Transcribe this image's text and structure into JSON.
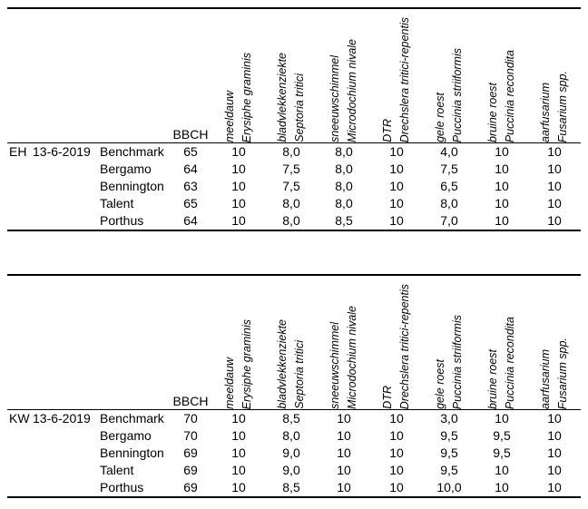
{
  "columns": {
    "bbch_label": "BBCH",
    "diseases": [
      {
        "dutch": "meeldauw",
        "latin": "Erysiphe graminis"
      },
      {
        "dutch": "bladvlekkenziekte",
        "latin": "Septoria tritici"
      },
      {
        "dutch": "sneeuwschimmel",
        "latin": "Microdochium nivale"
      },
      {
        "dutch": "DTR",
        "latin": "Drechslera tritici-repentis"
      },
      {
        "dutch": "gele roest",
        "latin": "Puccinia striiformis"
      },
      {
        "dutch": "bruine roest",
        "latin": "Puccinia recondita"
      },
      {
        "dutch": "aarfusarium",
        "latin": "Fusarium  spp."
      }
    ]
  },
  "tables": [
    {
      "group": "EH",
      "date": "13-6-2019",
      "rows": [
        {
          "variety": "Benchmark",
          "bbch": "65",
          "values": [
            "10",
            "8,0",
            "8,0",
            "10",
            "4,0",
            "10",
            "10"
          ]
        },
        {
          "variety": "Bergamo",
          "bbch": "64",
          "values": [
            "10",
            "7,5",
            "8,0",
            "10",
            "7,5",
            "10",
            "10"
          ]
        },
        {
          "variety": "Bennington",
          "bbch": "63",
          "values": [
            "10",
            "7,5",
            "8,0",
            "10",
            "6,5",
            "10",
            "10"
          ]
        },
        {
          "variety": "Talent",
          "bbch": "65",
          "values": [
            "10",
            "8,0",
            "8,0",
            "10",
            "8,0",
            "10",
            "10"
          ]
        },
        {
          "variety": "Porthus",
          "bbch": "64",
          "values": [
            "10",
            "8,0",
            "8,5",
            "10",
            "7,0",
            "10",
            "10"
          ]
        }
      ]
    },
    {
      "group": "KW",
      "date": "13-6-2019",
      "rows": [
        {
          "variety": "Benchmark",
          "bbch": "70",
          "values": [
            "10",
            "8,5",
            "10",
            "10",
            "3,0",
            "10",
            "10"
          ]
        },
        {
          "variety": "Bergamo",
          "bbch": "70",
          "values": [
            "10",
            "8,0",
            "10",
            "10",
            "9,5",
            "9,5",
            "10"
          ]
        },
        {
          "variety": "Bennington",
          "bbch": "69",
          "values": [
            "10",
            "9,0",
            "10",
            "10",
            "9,5",
            "9,5",
            "10"
          ]
        },
        {
          "variety": "Talent",
          "bbch": "69",
          "values": [
            "10",
            "9,0",
            "10",
            "10",
            "9,5",
            "10",
            "10"
          ]
        },
        {
          "variety": "Porthus",
          "bbch": "69",
          "values": [
            "10",
            "8,5",
            "10",
            "10",
            "10,0",
            "10",
            "10"
          ]
        }
      ]
    }
  ]
}
